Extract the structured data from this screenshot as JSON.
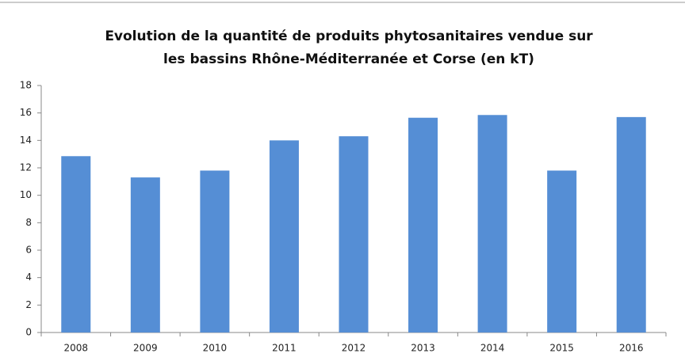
{
  "chart_data": {
    "type": "bar",
    "title": [
      "Evolution de la quantité de produits phytosanitaires vendue sur",
      "les bassins Rhône-Méditerranée et Corse (en kT)"
    ],
    "categories": [
      "2008",
      "2009",
      "2010",
      "2011",
      "2012",
      "2013",
      "2014",
      "2015",
      "2016"
    ],
    "values": [
      12.85,
      11.3,
      11.8,
      14.0,
      14.3,
      15.65,
      15.85,
      11.8,
      15.7
    ],
    "color": "#558ed5",
    "ylim": [
      0,
      18
    ],
    "yticks": [
      0,
      2,
      4,
      6,
      8,
      10,
      12,
      14,
      16,
      18
    ],
    "grid": false
  }
}
